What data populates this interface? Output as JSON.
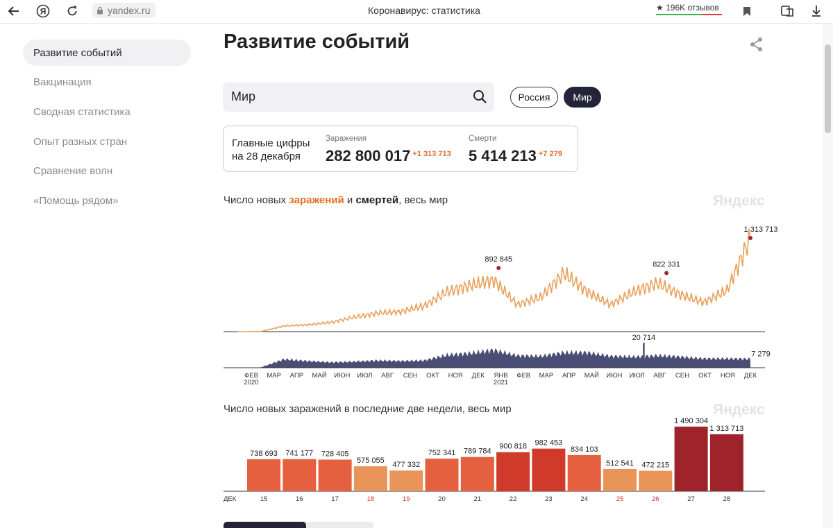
{
  "browser": {
    "url": "yandex.ru",
    "title": "Коронавирус: статистика",
    "reviews": "★ 196K отзывов"
  },
  "sidebar": {
    "items": [
      {
        "label": "Развитие событий",
        "active": true
      },
      {
        "label": "Вакцинация",
        "active": false
      },
      {
        "label": "Сводная статистика",
        "active": false
      },
      {
        "label": "Опыт разных стран",
        "active": false
      },
      {
        "label": "Сравнение волн",
        "active": false
      },
      {
        "label": "«Помощь рядом»",
        "active": false
      }
    ]
  },
  "main": {
    "title": "Развитие событий",
    "search_value": "Мир",
    "toggle": {
      "russia": "Россия",
      "world": "Мир",
      "selected": "world"
    },
    "stats": {
      "label_line1": "Главные цифры",
      "label_line2": "на 28 декабря",
      "infections_label": "Заражения",
      "infections_value": "282 800 017",
      "infections_delta": "+1 313 713",
      "deaths_label": "Смерти",
      "deaths_value": "5 414 213",
      "deaths_delta": "+7 279"
    },
    "chart1_title_parts": [
      "Число новых ",
      "заражений",
      " и ",
      "смертей",
      ", весь мир"
    ],
    "chart2_title": "Число новых заражений в последние две недели, весь мир",
    "watermark": "Яндекс"
  },
  "chart_data": [
    {
      "type": "area",
      "title": "Число новых заражений и смертей, весь мир",
      "x_ticks": [
        "ФЕВ",
        "МАР",
        "АПР",
        "МАЙ",
        "ИЮН",
        "ИЮЛ",
        "АВГ",
        "СЕН",
        "ОКТ",
        "НОЯ",
        "ДЕК",
        "ЯНВ",
        "ФЕВ",
        "МАР",
        "АПР",
        "МАЙ",
        "ИЮН",
        "ИЮЛ",
        "АВГ",
        "СЕН",
        "ОКТ",
        "НОЯ",
        "ДЕК"
      ],
      "x_year_labels": [
        {
          "tick": 0,
          "label": "2020"
        },
        {
          "tick": 11,
          "label": "2021"
        }
      ],
      "series": [
        {
          "name": "заражений",
          "color": "#e8a05a",
          "approx_monthly": [
            0,
            1000,
            80000,
            95000,
            130000,
            200000,
            260000,
            280000,
            360000,
            560000,
            650000,
            720000,
            380000,
            480000,
            820000,
            560000,
            380000,
            560000,
            680000,
            520000,
            410000,
            580000,
            1313713
          ],
          "annotations": [
            {
              "label": "892 845",
              "position": "ЯНВ 2021"
            },
            {
              "label": "822 331",
              "position": "АВГ 2021"
            },
            {
              "label": "1 313 713",
              "position": "28 ДЕК 2021"
            }
          ]
        },
        {
          "name": "смертей",
          "color": "#4a4e74",
          "approx_monthly": [
            0,
            300,
            7000,
            5500,
            4500,
            5000,
            6000,
            5500,
            6000,
            10500,
            12000,
            14500,
            10000,
            9500,
            12500,
            12500,
            9500,
            9000,
            10000,
            9000,
            7500,
            7500,
            7279
          ],
          "annotations": [
            {
              "label": "20 714",
              "position": "ИЮЛ 2021"
            },
            {
              "label": "7 279",
              "position": "28 ДЕК 2021"
            }
          ]
        }
      ]
    },
    {
      "type": "bar",
      "title": "Число новых заражений в последние две недели, весь мир",
      "month_label": "ДЕК",
      "categories": [
        "15",
        "16",
        "17",
        "18",
        "19",
        "20",
        "21",
        "22",
        "23",
        "24",
        "25",
        "26",
        "27",
        "28"
      ],
      "values": [
        738693,
        741177,
        728405,
        575055,
        477332,
        752341,
        789784,
        900818,
        982453,
        834103,
        512541,
        472215,
        1490304,
        1313713
      ],
      "value_labels": [
        "738 693",
        "741 177",
        "728 405",
        "575 055",
        "477 332",
        "752 341",
        "789 784",
        "900 818",
        "982 453",
        "834 103",
        "512 541",
        "472 215",
        "1 490 304",
        "1 313 713"
      ],
      "weekend_categories": [
        "18",
        "19",
        "25",
        "26"
      ],
      "colors": [
        "#e4603f",
        "#e4603f",
        "#e4603f",
        "#e9955a",
        "#e9955a",
        "#e4603f",
        "#e4603f",
        "#cf3a2b",
        "#cf3a2b",
        "#e4603f",
        "#e9955a",
        "#e9955a",
        "#9e232a",
        "#9e232a"
      ],
      "ylim": [
        0,
        1600000
      ]
    }
  ]
}
